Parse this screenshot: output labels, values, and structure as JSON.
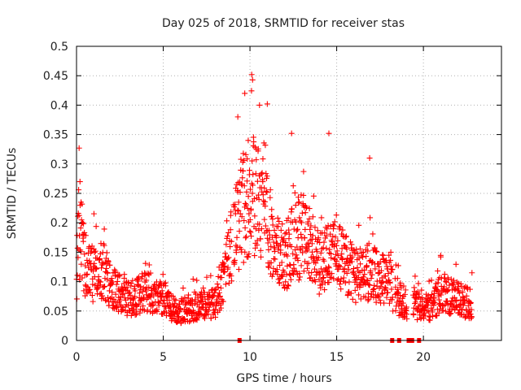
{
  "chart_data": {
    "type": "scatter",
    "title": "Day 025 of 2018, SRMTID for receiver stas",
    "xlabel": "GPS time / hours",
    "ylabel": "SRMTID / TECUs",
    "xlim": [
      0,
      24.5
    ],
    "ylim": [
      0,
      0.5
    ],
    "x_ticks": [
      0,
      5,
      10,
      15,
      20
    ],
    "x_tick_labels": [
      "0",
      "5",
      "10",
      "15",
      "20"
    ],
    "y_ticks": [
      0,
      0.05,
      0.1,
      0.15,
      0.2,
      0.25,
      0.3,
      0.35,
      0.4,
      0.45,
      0.5
    ],
    "y_tick_labels": [
      "0",
      "0.05",
      "0.1",
      "0.15",
      "0.2",
      "0.25",
      "0.3",
      "0.35",
      "0.4",
      "0.45",
      "0.5"
    ],
    "grid": true,
    "marker": "+",
    "marker_color": "#ff0000",
    "series": [
      {
        "name": "SRMTID",
        "trend": [
          [
            0.0,
            0.1
          ],
          [
            0.1,
            0.18
          ],
          [
            0.25,
            0.17
          ],
          [
            0.5,
            0.13
          ],
          [
            1.0,
            0.11
          ],
          [
            1.5,
            0.12
          ],
          [
            2.0,
            0.09
          ],
          [
            2.5,
            0.08
          ],
          [
            3.0,
            0.07
          ],
          [
            3.5,
            0.075
          ],
          [
            4.0,
            0.085
          ],
          [
            4.5,
            0.07
          ],
          [
            5.0,
            0.075
          ],
          [
            5.5,
            0.055
          ],
          [
            6.0,
            0.05
          ],
          [
            6.5,
            0.055
          ],
          [
            7.0,
            0.06
          ],
          [
            7.5,
            0.06
          ],
          [
            8.0,
            0.065
          ],
          [
            8.5,
            0.1
          ],
          [
            9.0,
            0.17
          ],
          [
            9.5,
            0.22
          ],
          [
            10.0,
            0.25
          ],
          [
            10.5,
            0.24
          ],
          [
            11.0,
            0.2
          ],
          [
            11.5,
            0.16
          ],
          [
            12.0,
            0.14
          ],
          [
            12.5,
            0.17
          ],
          [
            13.0,
            0.18
          ],
          [
            13.5,
            0.16
          ],
          [
            14.0,
            0.13
          ],
          [
            14.5,
            0.14
          ],
          [
            15.0,
            0.15
          ],
          [
            15.5,
            0.13
          ],
          [
            16.0,
            0.11
          ],
          [
            16.5,
            0.11
          ],
          [
            17.0,
            0.12
          ],
          [
            17.5,
            0.1
          ],
          [
            18.0,
            0.11
          ],
          [
            18.3,
            0.08
          ],
          [
            18.6,
            0.07
          ],
          [
            18.9,
            0.065
          ],
          [
            19.0,
            0.06
          ],
          [
            19.5,
            0.06
          ],
          [
            20.0,
            0.055
          ],
          [
            20.5,
            0.06
          ],
          [
            21.0,
            0.08
          ],
          [
            21.5,
            0.075
          ],
          [
            22.0,
            0.07
          ],
          [
            22.5,
            0.065
          ],
          [
            22.8,
            0.06
          ]
        ],
        "gaps": [
          [
            8.95,
            9.05
          ],
          [
            18.25,
            18.35
          ],
          [
            19.05,
            19.4
          ]
        ],
        "samples_per_hour": 70,
        "peaks": [
          [
            0.15,
            0.327
          ],
          [
            0.2,
            0.27
          ],
          [
            10.1,
            0.452
          ],
          [
            10.15,
            0.443
          ],
          [
            9.7,
            0.42
          ],
          [
            10.55,
            0.4
          ],
          [
            11.0,
            0.402
          ],
          [
            14.55,
            0.352
          ],
          [
            16.9,
            0.31
          ],
          [
            12.4,
            0.352
          ],
          [
            21.0,
            0.142
          ],
          [
            22.8,
            0.115
          ],
          [
            9.3,
            0.38
          ],
          [
            9.9,
            0.34
          ]
        ],
        "zero_values_at": [
          9.4,
          18.2,
          18.6,
          19.15,
          19.35,
          19.75
        ]
      }
    ]
  }
}
